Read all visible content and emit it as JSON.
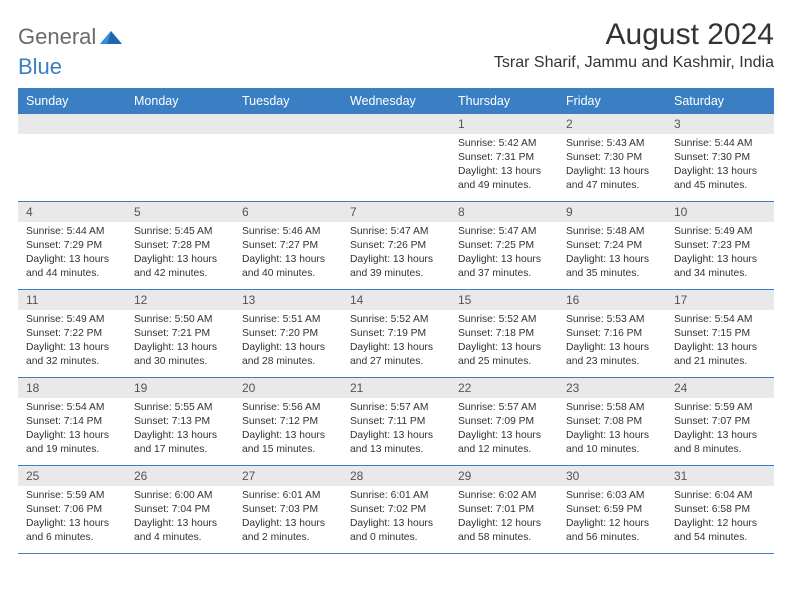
{
  "brand": {
    "word1": "General",
    "word2": "Blue"
  },
  "title": "August 2024",
  "location": "Tsrar Sharif, Jammu and Kashmir, India",
  "colors": {
    "header_bg": "#3a7fc4",
    "header_text": "#ffffff",
    "daynum_bg": "#e9e9e9",
    "border": "#3a7fc4",
    "text": "#333333",
    "logo_gray": "#6a6a6a",
    "logo_blue": "#3a7fc4"
  },
  "day_names": [
    "Sunday",
    "Monday",
    "Tuesday",
    "Wednesday",
    "Thursday",
    "Friday",
    "Saturday"
  ],
  "weeks": [
    [
      null,
      null,
      null,
      null,
      {
        "n": "1",
        "sr": "Sunrise: 5:42 AM",
        "ss": "Sunset: 7:31 PM",
        "d1": "Daylight: 13 hours",
        "d2": "and 49 minutes."
      },
      {
        "n": "2",
        "sr": "Sunrise: 5:43 AM",
        "ss": "Sunset: 7:30 PM",
        "d1": "Daylight: 13 hours",
        "d2": "and 47 minutes."
      },
      {
        "n": "3",
        "sr": "Sunrise: 5:44 AM",
        "ss": "Sunset: 7:30 PM",
        "d1": "Daylight: 13 hours",
        "d2": "and 45 minutes."
      }
    ],
    [
      {
        "n": "4",
        "sr": "Sunrise: 5:44 AM",
        "ss": "Sunset: 7:29 PM",
        "d1": "Daylight: 13 hours",
        "d2": "and 44 minutes."
      },
      {
        "n": "5",
        "sr": "Sunrise: 5:45 AM",
        "ss": "Sunset: 7:28 PM",
        "d1": "Daylight: 13 hours",
        "d2": "and 42 minutes."
      },
      {
        "n": "6",
        "sr": "Sunrise: 5:46 AM",
        "ss": "Sunset: 7:27 PM",
        "d1": "Daylight: 13 hours",
        "d2": "and 40 minutes."
      },
      {
        "n": "7",
        "sr": "Sunrise: 5:47 AM",
        "ss": "Sunset: 7:26 PM",
        "d1": "Daylight: 13 hours",
        "d2": "and 39 minutes."
      },
      {
        "n": "8",
        "sr": "Sunrise: 5:47 AM",
        "ss": "Sunset: 7:25 PM",
        "d1": "Daylight: 13 hours",
        "d2": "and 37 minutes."
      },
      {
        "n": "9",
        "sr": "Sunrise: 5:48 AM",
        "ss": "Sunset: 7:24 PM",
        "d1": "Daylight: 13 hours",
        "d2": "and 35 minutes."
      },
      {
        "n": "10",
        "sr": "Sunrise: 5:49 AM",
        "ss": "Sunset: 7:23 PM",
        "d1": "Daylight: 13 hours",
        "d2": "and 34 minutes."
      }
    ],
    [
      {
        "n": "11",
        "sr": "Sunrise: 5:49 AM",
        "ss": "Sunset: 7:22 PM",
        "d1": "Daylight: 13 hours",
        "d2": "and 32 minutes."
      },
      {
        "n": "12",
        "sr": "Sunrise: 5:50 AM",
        "ss": "Sunset: 7:21 PM",
        "d1": "Daylight: 13 hours",
        "d2": "and 30 minutes."
      },
      {
        "n": "13",
        "sr": "Sunrise: 5:51 AM",
        "ss": "Sunset: 7:20 PM",
        "d1": "Daylight: 13 hours",
        "d2": "and 28 minutes."
      },
      {
        "n": "14",
        "sr": "Sunrise: 5:52 AM",
        "ss": "Sunset: 7:19 PM",
        "d1": "Daylight: 13 hours",
        "d2": "and 27 minutes."
      },
      {
        "n": "15",
        "sr": "Sunrise: 5:52 AM",
        "ss": "Sunset: 7:18 PM",
        "d1": "Daylight: 13 hours",
        "d2": "and 25 minutes."
      },
      {
        "n": "16",
        "sr": "Sunrise: 5:53 AM",
        "ss": "Sunset: 7:16 PM",
        "d1": "Daylight: 13 hours",
        "d2": "and 23 minutes."
      },
      {
        "n": "17",
        "sr": "Sunrise: 5:54 AM",
        "ss": "Sunset: 7:15 PM",
        "d1": "Daylight: 13 hours",
        "d2": "and 21 minutes."
      }
    ],
    [
      {
        "n": "18",
        "sr": "Sunrise: 5:54 AM",
        "ss": "Sunset: 7:14 PM",
        "d1": "Daylight: 13 hours",
        "d2": "and 19 minutes."
      },
      {
        "n": "19",
        "sr": "Sunrise: 5:55 AM",
        "ss": "Sunset: 7:13 PM",
        "d1": "Daylight: 13 hours",
        "d2": "and 17 minutes."
      },
      {
        "n": "20",
        "sr": "Sunrise: 5:56 AM",
        "ss": "Sunset: 7:12 PM",
        "d1": "Daylight: 13 hours",
        "d2": "and 15 minutes."
      },
      {
        "n": "21",
        "sr": "Sunrise: 5:57 AM",
        "ss": "Sunset: 7:11 PM",
        "d1": "Daylight: 13 hours",
        "d2": "and 13 minutes."
      },
      {
        "n": "22",
        "sr": "Sunrise: 5:57 AM",
        "ss": "Sunset: 7:09 PM",
        "d1": "Daylight: 13 hours",
        "d2": "and 12 minutes."
      },
      {
        "n": "23",
        "sr": "Sunrise: 5:58 AM",
        "ss": "Sunset: 7:08 PM",
        "d1": "Daylight: 13 hours",
        "d2": "and 10 minutes."
      },
      {
        "n": "24",
        "sr": "Sunrise: 5:59 AM",
        "ss": "Sunset: 7:07 PM",
        "d1": "Daylight: 13 hours",
        "d2": "and 8 minutes."
      }
    ],
    [
      {
        "n": "25",
        "sr": "Sunrise: 5:59 AM",
        "ss": "Sunset: 7:06 PM",
        "d1": "Daylight: 13 hours",
        "d2": "and 6 minutes."
      },
      {
        "n": "26",
        "sr": "Sunrise: 6:00 AM",
        "ss": "Sunset: 7:04 PM",
        "d1": "Daylight: 13 hours",
        "d2": "and 4 minutes."
      },
      {
        "n": "27",
        "sr": "Sunrise: 6:01 AM",
        "ss": "Sunset: 7:03 PM",
        "d1": "Daylight: 13 hours",
        "d2": "and 2 minutes."
      },
      {
        "n": "28",
        "sr": "Sunrise: 6:01 AM",
        "ss": "Sunset: 7:02 PM",
        "d1": "Daylight: 13 hours",
        "d2": "and 0 minutes."
      },
      {
        "n": "29",
        "sr": "Sunrise: 6:02 AM",
        "ss": "Sunset: 7:01 PM",
        "d1": "Daylight: 12 hours",
        "d2": "and 58 minutes."
      },
      {
        "n": "30",
        "sr": "Sunrise: 6:03 AM",
        "ss": "Sunset: 6:59 PM",
        "d1": "Daylight: 12 hours",
        "d2": "and 56 minutes."
      },
      {
        "n": "31",
        "sr": "Sunrise: 6:04 AM",
        "ss": "Sunset: 6:58 PM",
        "d1": "Daylight: 12 hours",
        "d2": "and 54 minutes."
      }
    ]
  ]
}
